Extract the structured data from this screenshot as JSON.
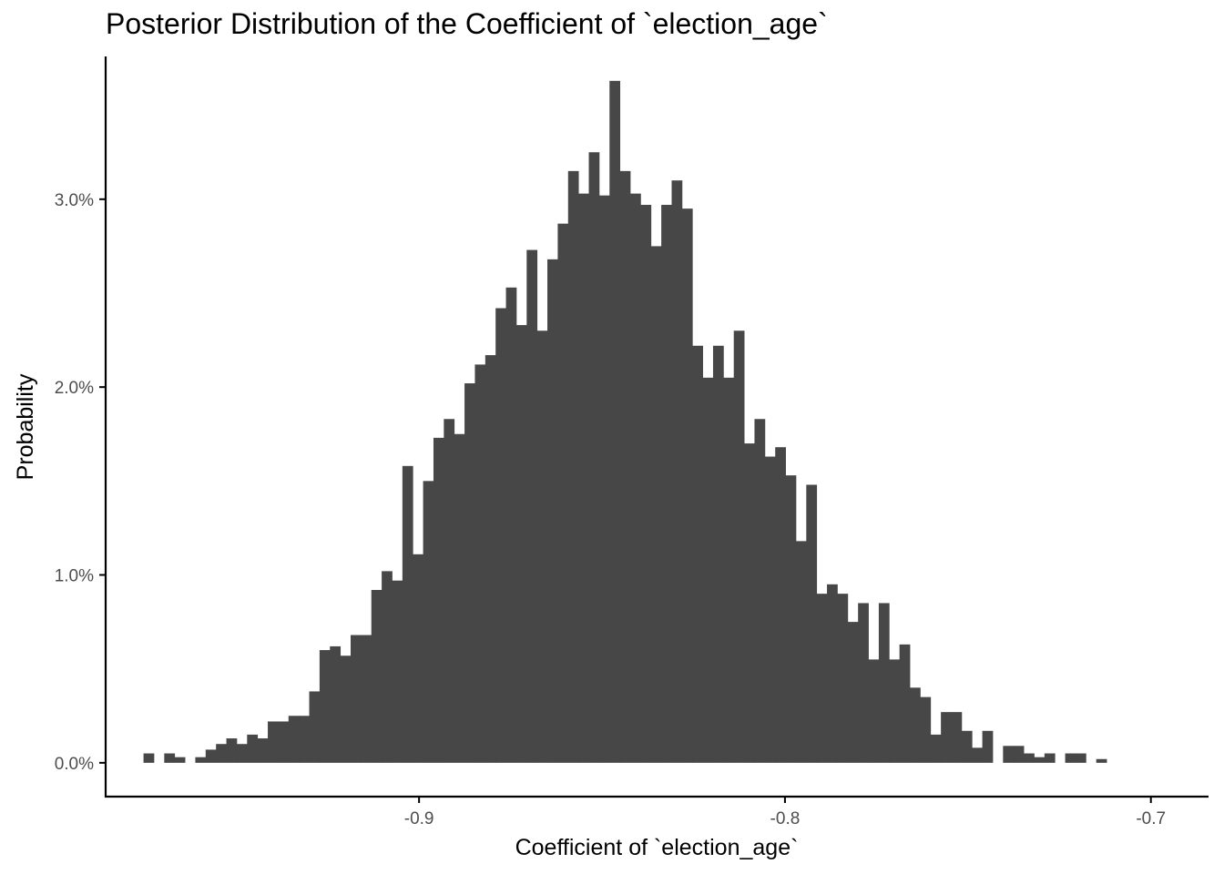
{
  "chart_data": {
    "type": "histogram",
    "title": "Posterior Distribution of the Coefficient of `election_age`",
    "xlabel": "Coefficient of `election_age`",
    "ylabel": "Probability",
    "xlim": [
      -0.98565,
      -0.68425
    ],
    "ylim": [
      -0.0018,
      0.0376
    ],
    "x_ticks": [
      {
        "value": -0.9,
        "label": "-0.9"
      },
      {
        "value": -0.8,
        "label": "-0.8"
      },
      {
        "value": -0.7,
        "label": "-0.7"
      }
    ],
    "y_ticks": [
      {
        "value": 0.0,
        "label": "0.0%"
      },
      {
        "value": 0.01,
        "label": "1.0%"
      },
      {
        "value": 0.02,
        "label": "2.0%"
      },
      {
        "value": 0.03,
        "label": "3.0%"
      }
    ],
    "bar_color": "#474747",
    "grid": false,
    "bin_start": -0.9753,
    "bin_width": 0.00283,
    "values": [
      0.0005,
      0,
      0.0005,
      0.0003,
      0,
      0.0003,
      0.0007,
      0.001,
      0.0013,
      0.001,
      0.0015,
      0.0013,
      0.0022,
      0.0022,
      0.0025,
      0.0025,
      0.0038,
      0.006,
      0.0062,
      0.0057,
      0.0068,
      0.0068,
      0.0092,
      0.0102,
      0.0097,
      0.0158,
      0.0111,
      0.015,
      0.0173,
      0.0183,
      0.0175,
      0.0202,
      0.0212,
      0.0217,
      0.0242,
      0.0253,
      0.0233,
      0.0273,
      0.023,
      0.0268,
      0.0287,
      0.0315,
      0.0303,
      0.0325,
      0.0302,
      0.0363,
      0.0315,
      0.0303,
      0.0297,
      0.0275,
      0.0297,
      0.031,
      0.0295,
      0.0222,
      0.0205,
      0.0222,
      0.0205,
      0.023,
      0.017,
      0.0183,
      0.0163,
      0.0168,
      0.0153,
      0.0118,
      0.0148,
      0.009,
      0.0095,
      0.009,
      0.0075,
      0.0085,
      0.0055,
      0.0085,
      0.0055,
      0.0063,
      0.004,
      0.0035,
      0.0015,
      0.0027,
      0.0027,
      0.0017,
      0.0008,
      0.0017,
      0,
      0.0009,
      0.0009,
      0.0005,
      0.0003,
      0.0005,
      0,
      0.0005,
      0.0005,
      0,
      0.0002,
      0,
      0,
      0,
      0,
      0,
      0,
      0,
      0,
      0,
      0,
      0,
      0,
      0.0002
    ]
  }
}
